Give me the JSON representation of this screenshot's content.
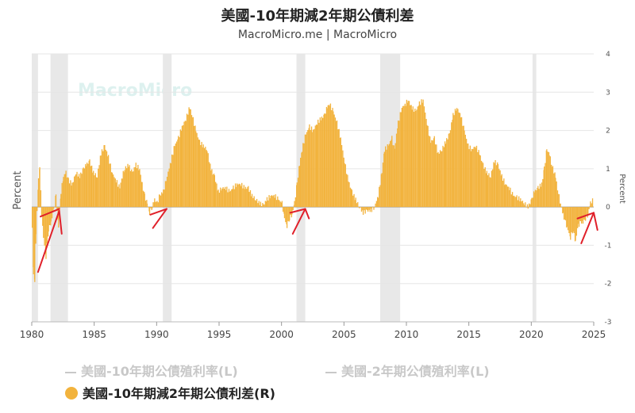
{
  "title": "美國-10年期減2年期公債利差",
  "subtitle": "MacroMicro.me | MacroMicro",
  "watermark": "MacroMicro",
  "legend": [
    {
      "label": "美國-10年期公債殖利率(L)",
      "state": "inactive",
      "color": "#c8c8c8"
    },
    {
      "label": "美國-2年期公債殖利率(L)",
      "state": "inactive",
      "color": "#c8c8c8"
    },
    {
      "label": "美國-10年期減2年期公債利差(R)",
      "state": "active",
      "color": "#f2b33d"
    }
  ],
  "colors": {
    "bar": "#f2b33d",
    "recession": "#e8e8e8",
    "arrow": "#e0202a",
    "grid": "#e6e6e6",
    "zero_line": "#9a9a9a"
  },
  "chart_data": {
    "type": "bar",
    "x_axis": {
      "range": [
        1980,
        2025
      ],
      "ticks": [
        "1980",
        "1985",
        "1990",
        "1995",
        "2000",
        "2005",
        "2010",
        "2015",
        "2020",
        "2025"
      ]
    },
    "y_left": {
      "label": "Percent",
      "range": [
        -3,
        4
      ]
    },
    "y_right": {
      "label": "Percent",
      "range": [
        -3,
        4
      ],
      "ticks": [
        "4",
        "3",
        "2",
        "1",
        "0",
        "-1",
        "-2",
        "-3"
      ]
    },
    "grid": "horizontal",
    "series": [
      {
        "name": "美國-10年期減2年期公債利差(R)",
        "points": [
          [
            1980.0,
            -0.6
          ],
          [
            1980.1,
            -1.7
          ],
          [
            1980.2,
            -2.0
          ],
          [
            1980.3,
            -0.7
          ],
          [
            1980.5,
            0.7
          ],
          [
            1980.6,
            1.1
          ],
          [
            1980.75,
            -0.2
          ],
          [
            1980.9,
            -0.8
          ],
          [
            1981.1,
            -1.3
          ],
          [
            1981.3,
            -0.6
          ],
          [
            1981.5,
            -0.4
          ],
          [
            1981.7,
            -0.1
          ],
          [
            1981.9,
            0.3
          ],
          [
            1982.1,
            -0.5
          ],
          [
            1982.3,
            0.4
          ],
          [
            1982.5,
            0.8
          ],
          [
            1982.7,
            0.9
          ],
          [
            1982.9,
            0.7
          ],
          [
            1983.2,
            0.6
          ],
          [
            1983.5,
            0.9
          ],
          [
            1983.8,
            0.8
          ],
          [
            1984.1,
            1.0
          ],
          [
            1984.3,
            1.1
          ],
          [
            1984.6,
            1.2
          ],
          [
            1984.9,
            0.9
          ],
          [
            1985.2,
            0.8
          ],
          [
            1985.5,
            1.4
          ],
          [
            1985.8,
            1.6
          ],
          [
            1986.1,
            1.3
          ],
          [
            1986.4,
            0.9
          ],
          [
            1986.7,
            0.7
          ],
          [
            1987.0,
            0.5
          ],
          [
            1987.2,
            0.8
          ],
          [
            1987.4,
            1.0
          ],
          [
            1987.7,
            1.1
          ],
          [
            1988.0,
            0.9
          ],
          [
            1988.3,
            1.1
          ],
          [
            1988.6,
            1.0
          ],
          [
            1988.8,
            0.6
          ],
          [
            1989.0,
            0.3
          ],
          [
            1989.2,
            0.1
          ],
          [
            1989.4,
            -0.15
          ],
          [
            1989.6,
            0.0
          ],
          [
            1989.8,
            0.2
          ],
          [
            1990.0,
            0.1
          ],
          [
            1990.2,
            0.3
          ],
          [
            1990.5,
            0.4
          ],
          [
            1990.8,
            0.8
          ],
          [
            1991.1,
            1.2
          ],
          [
            1991.4,
            1.6
          ],
          [
            1991.7,
            1.8
          ],
          [
            1992.0,
            2.1
          ],
          [
            1992.3,
            2.3
          ],
          [
            1992.6,
            2.6
          ],
          [
            1992.8,
            2.4
          ],
          [
            1993.1,
            2.0
          ],
          [
            1993.4,
            1.7
          ],
          [
            1993.7,
            1.6
          ],
          [
            1994.0,
            1.5
          ],
          [
            1994.3,
            1.0
          ],
          [
            1994.6,
            0.8
          ],
          [
            1994.9,
            0.4
          ],
          [
            1995.2,
            0.5
          ],
          [
            1995.5,
            0.5
          ],
          [
            1995.8,
            0.4
          ],
          [
            1996.1,
            0.5
          ],
          [
            1996.4,
            0.6
          ],
          [
            1996.7,
            0.6
          ],
          [
            1997.0,
            0.5
          ],
          [
            1997.3,
            0.5
          ],
          [
            1997.6,
            0.3
          ],
          [
            1997.9,
            0.2
          ],
          [
            1998.2,
            0.1
          ],
          [
            1998.5,
            0.05
          ],
          [
            1998.8,
            0.2
          ],
          [
            1999.1,
            0.3
          ],
          [
            1999.4,
            0.3
          ],
          [
            1999.7,
            0.2
          ],
          [
            2000.0,
            0.1
          ],
          [
            2000.2,
            -0.3
          ],
          [
            2000.4,
            -0.5
          ],
          [
            2000.6,
            -0.3
          ],
          [
            2000.8,
            -0.2
          ],
          [
            2001.0,
            0.1
          ],
          [
            2001.2,
            0.6
          ],
          [
            2001.4,
            1.1
          ],
          [
            2001.6,
            1.5
          ],
          [
            2001.9,
            1.9
          ],
          [
            2002.2,
            2.1
          ],
          [
            2002.5,
            2.0
          ],
          [
            2002.8,
            2.2
          ],
          [
            2003.1,
            2.3
          ],
          [
            2003.4,
            2.4
          ],
          [
            2003.6,
            2.6
          ],
          [
            2003.8,
            2.7
          ],
          [
            2004.1,
            2.5
          ],
          [
            2004.4,
            2.2
          ],
          [
            2004.7,
            1.8
          ],
          [
            2005.0,
            1.2
          ],
          [
            2005.3,
            0.7
          ],
          [
            2005.6,
            0.4
          ],
          [
            2005.9,
            0.2
          ],
          [
            2006.2,
            0.0
          ],
          [
            2006.5,
            -0.15
          ],
          [
            2006.8,
            -0.1
          ],
          [
            2007.1,
            -0.1
          ],
          [
            2007.4,
            0.0
          ],
          [
            2007.7,
            0.3
          ],
          [
            2008.0,
            0.9
          ],
          [
            2008.2,
            1.5
          ],
          [
            2008.5,
            1.6
          ],
          [
            2008.8,
            1.8
          ],
          [
            2009.0,
            1.5
          ],
          [
            2009.3,
            2.2
          ],
          [
            2009.6,
            2.6
          ],
          [
            2009.9,
            2.7
          ],
          [
            2010.1,
            2.8
          ],
          [
            2010.4,
            2.6
          ],
          [
            2010.7,
            2.5
          ],
          [
            2011.0,
            2.7
          ],
          [
            2011.3,
            2.8
          ],
          [
            2011.6,
            2.2
          ],
          [
            2011.9,
            1.7
          ],
          [
            2012.2,
            1.8
          ],
          [
            2012.5,
            1.4
          ],
          [
            2012.8,
            1.5
          ],
          [
            2013.1,
            1.7
          ],
          [
            2013.4,
            1.9
          ],
          [
            2013.7,
            2.4
          ],
          [
            2014.0,
            2.6
          ],
          [
            2014.3,
            2.4
          ],
          [
            2014.6,
            2.0
          ],
          [
            2014.9,
            1.6
          ],
          [
            2015.2,
            1.5
          ],
          [
            2015.5,
            1.6
          ],
          [
            2015.8,
            1.4
          ],
          [
            2016.1,
            1.1
          ],
          [
            2016.4,
            0.9
          ],
          [
            2016.7,
            0.8
          ],
          [
            2017.0,
            1.2
          ],
          [
            2017.3,
            1.1
          ],
          [
            2017.6,
            0.8
          ],
          [
            2017.9,
            0.6
          ],
          [
            2018.2,
            0.5
          ],
          [
            2018.5,
            0.3
          ],
          [
            2018.8,
            0.25
          ],
          [
            2019.1,
            0.2
          ],
          [
            2019.4,
            0.1
          ],
          [
            2019.7,
            0.0
          ],
          [
            2020.0,
            0.2
          ],
          [
            2020.2,
            0.4
          ],
          [
            2020.5,
            0.5
          ],
          [
            2020.8,
            0.6
          ],
          [
            2021.0,
            1.0
          ],
          [
            2021.2,
            1.5
          ],
          [
            2021.4,
            1.4
          ],
          [
            2021.6,
            1.1
          ],
          [
            2021.9,
            0.8
          ],
          [
            2022.1,
            0.4
          ],
          [
            2022.3,
            0.1
          ],
          [
            2022.5,
            -0.2
          ],
          [
            2022.7,
            -0.4
          ],
          [
            2022.9,
            -0.6
          ],
          [
            2023.1,
            -0.8
          ],
          [
            2023.3,
            -0.6
          ],
          [
            2023.5,
            -0.9
          ],
          [
            2023.7,
            -0.5
          ],
          [
            2023.9,
            -0.4
          ],
          [
            2024.1,
            -0.4
          ],
          [
            2024.3,
            -0.3
          ],
          [
            2024.5,
            -0.2
          ],
          [
            2024.7,
            0.1
          ],
          [
            2024.9,
            0.2
          ]
        ]
      }
    ],
    "recessions": [
      [
        1980.0,
        1980.5
      ],
      [
        1981.5,
        1982.9
      ],
      [
        1990.5,
        1991.2
      ],
      [
        2001.2,
        2001.9
      ],
      [
        2007.9,
        2009.5
      ],
      [
        2020.1,
        2020.4
      ]
    ],
    "annotations": {
      "type": "arrows",
      "segments": [
        [
          [
            1980.5,
            -1.7
          ],
          [
            1982.2,
            -0.1
          ]
        ],
        [
          [
            1982.2,
            -0.1
          ],
          [
            1982.4,
            -0.7
          ]
        ],
        [
          [
            1980.7,
            -0.25
          ],
          [
            1982.2,
            -0.05
          ]
        ],
        [
          [
            1989.7,
            -0.55
          ],
          [
            1990.8,
            -0.05
          ]
        ],
        [
          [
            1989.5,
            -0.2
          ],
          [
            1990.8,
            -0.05
          ]
        ],
        [
          [
            2000.9,
            -0.7
          ],
          [
            2001.9,
            -0.05
          ]
        ],
        [
          [
            2001.9,
            -0.05
          ],
          [
            2002.2,
            -0.3
          ]
        ],
        [
          [
            2000.7,
            -0.15
          ],
          [
            2001.9,
            -0.05
          ]
        ],
        [
          [
            2023.7,
            -0.3
          ],
          [
            2025.0,
            -0.15
          ]
        ],
        [
          [
            2024.0,
            -0.95
          ],
          [
            2025.0,
            -0.15
          ]
        ],
        [
          [
            2025.0,
            -0.15
          ],
          [
            2025.3,
            -0.6
          ]
        ]
      ]
    }
  }
}
